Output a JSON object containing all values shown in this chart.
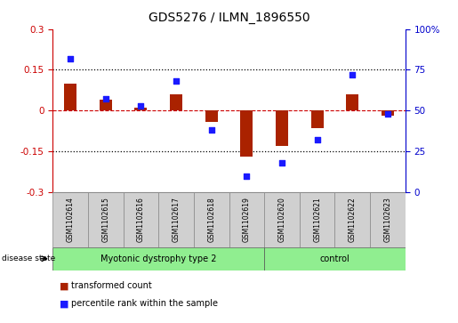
{
  "title": "GDS5276 / ILMN_1896550",
  "samples": [
    "GSM1102614",
    "GSM1102615",
    "GSM1102616",
    "GSM1102617",
    "GSM1102618",
    "GSM1102619",
    "GSM1102620",
    "GSM1102621",
    "GSM1102622",
    "GSM1102623"
  ],
  "transformed_count": [
    0.1,
    0.04,
    0.01,
    0.06,
    -0.04,
    -0.17,
    -0.13,
    -0.065,
    0.06,
    -0.02
  ],
  "percentile_rank": [
    82,
    57,
    53,
    68,
    38,
    10,
    18,
    32,
    72,
    48
  ],
  "disease_groups": [
    {
      "label": "Myotonic dystrophy type 2",
      "start": 0,
      "end": 6,
      "color": "#90ee90"
    },
    {
      "label": "control",
      "start": 6,
      "end": 10,
      "color": "#90ee90"
    }
  ],
  "ylim_left": [
    -0.3,
    0.3
  ],
  "ylim_right": [
    0,
    100
  ],
  "yticks_left": [
    -0.3,
    -0.15,
    0.0,
    0.15,
    0.3
  ],
  "yticks_right": [
    0,
    25,
    50,
    75,
    100
  ],
  "hlines_dotted": [
    0.15,
    -0.15
  ],
  "hline_dashed": 0.0,
  "bar_color": "#aa2200",
  "scatter_color": "#1a1aff",
  "bar_width": 0.35,
  "n_disease": 6,
  "n_control": 4,
  "legend_items": [
    {
      "label": "transformed count",
      "color": "#aa2200"
    },
    {
      "label": "percentile rank within the sample",
      "color": "#1a1aff"
    }
  ],
  "right_top_label": "100%",
  "right_tick_labels": [
    "0",
    "25",
    "50",
    "75",
    ""
  ],
  "label_fontsize": 7.5,
  "tick_fontsize": 7.5,
  "title_fontsize": 10
}
